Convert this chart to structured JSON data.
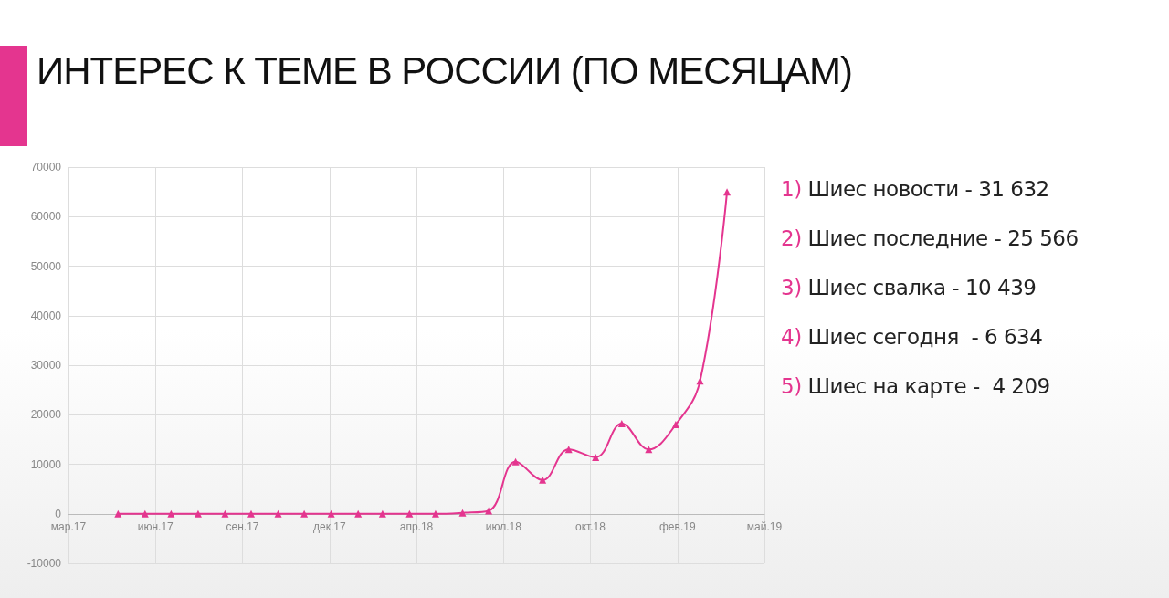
{
  "chart_data": {
    "type": "line",
    "title": "ИНТЕРЕС К ТЕМЕ В РОССИИ (ПО МЕСЯЦАМ)",
    "x": [
      "2017-05-01",
      "2017-06-01",
      "2017-07-01",
      "2017-08-01",
      "2017-09-01",
      "2017-10-01",
      "2017-11-01",
      "2017-12-01",
      "2018-01-01",
      "2018-02-01",
      "2018-03-01",
      "2018-04-01",
      "2018-05-01",
      "2018-06-01",
      "2018-07-01",
      "2018-08-01",
      "2018-09-01",
      "2018-10-01",
      "2018-11-01",
      "2018-12-01",
      "2019-01-01",
      "2019-02-01",
      "2019-03-01",
      "2019-04-01"
    ],
    "series": [
      {
        "color": "#e4358f",
        "values": [
          0,
          0,
          0,
          0,
          0,
          0,
          0,
          0,
          0,
          0,
          0,
          0,
          0,
          200,
          600,
          10500,
          6800,
          13000,
          11400,
          18200,
          13000,
          18000,
          26800,
          65000
        ]
      }
    ],
    "xlim": [
      "2017-03-05",
      "2019-05-14"
    ],
    "xticks": [
      {
        "value": "2017-03-05",
        "label": "мар.17"
      },
      {
        "value": "2017-06-13",
        "label": "июн.17"
      },
      {
        "value": "2017-09-21",
        "label": "сен.17"
      },
      {
        "value": "2017-12-30",
        "label": "дек.17"
      },
      {
        "value": "2018-04-09",
        "label": "апр.18"
      },
      {
        "value": "2018-07-18",
        "label": "июл.18"
      },
      {
        "value": "2018-10-26",
        "label": "окт.18"
      },
      {
        "value": "2019-02-03",
        "label": "фев.19"
      },
      {
        "value": "2019-05-14",
        "label": "май.19"
      }
    ],
    "ylim": [
      -10000,
      70000
    ],
    "yticks": [
      -10000,
      0,
      10000,
      20000,
      30000,
      40000,
      50000,
      60000,
      70000
    ],
    "grid": true,
    "marker": "triangle",
    "line_style": "solid",
    "annotations": [
      "1) Шиес новости - 31 632",
      "2) Шиес последние - 25 566",
      "3) Шиес свалка - 10 439",
      "4) Шиес сегодня  - 6 634",
      "5) Шиес на карте -  4 209"
    ]
  }
}
